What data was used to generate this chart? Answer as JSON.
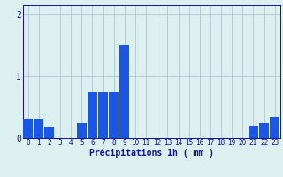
{
  "hours": [
    0,
    1,
    2,
    3,
    4,
    5,
    6,
    7,
    8,
    9,
    10,
    11,
    12,
    13,
    14,
    15,
    16,
    17,
    18,
    19,
    20,
    21,
    22,
    23
  ],
  "values": [
    0.3,
    0.3,
    0.18,
    0.0,
    0.0,
    0.25,
    0.75,
    0.75,
    0.75,
    1.5,
    0.0,
    0.0,
    0.0,
    0.0,
    0.0,
    0.0,
    0.0,
    0.0,
    0.0,
    0.0,
    0.0,
    0.2,
    0.25,
    0.35
  ],
  "bar_color": "#1a56e8",
  "background_color": "#ddf0f0",
  "grid_color": "#aabcca",
  "axis_color": "#1010a0",
  "xlabel": "Précipitations 1h ( mm )",
  "ylim": [
    0,
    2.15
  ],
  "yticks": [
    0,
    1,
    2
  ],
  "xlim": [
    -0.5,
    23.5
  ],
  "xlabel_fontsize": 7,
  "tick_fontsize": 5.5,
  "ytick_fontsize": 7
}
